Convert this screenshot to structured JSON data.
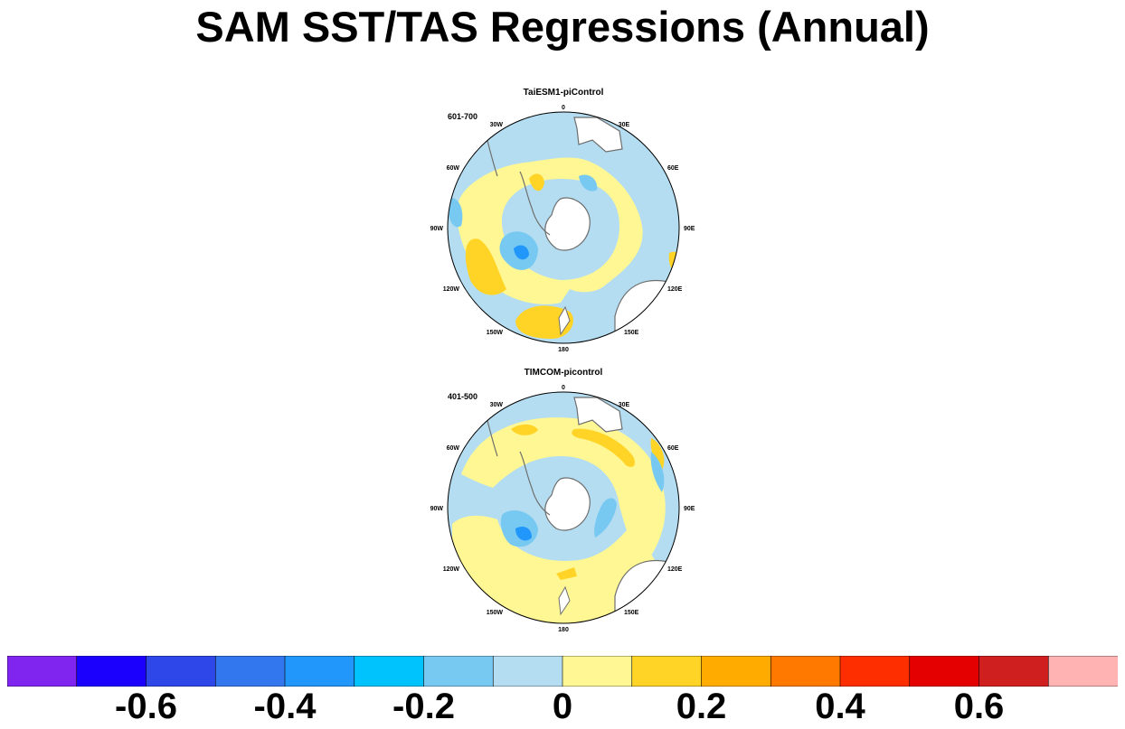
{
  "title": "SAM SST/TAS Regressions (Annual)",
  "panels": [
    {
      "model": "TaiESM1-piControl",
      "years": "601-700",
      "lon_labels": {
        "0": "0",
        "30E": "30E",
        "60E": "60E",
        "90E": "90E",
        "120E": "120E",
        "150E": "150E",
        "180": "180",
        "150W": "150W",
        "120W": "120W",
        "90W": "90W",
        "60W": "60W",
        "30W": "30W"
      }
    },
    {
      "model": "TIMCOM-picontrol",
      "years": "401-500",
      "lon_labels": {
        "0": "0",
        "30E": "30E",
        "60E": "60E",
        "90E": "90E",
        "120E": "120E",
        "150E": "150E",
        "180": "180",
        "150W": "150W",
        "120W": "120W",
        "90W": "90W",
        "60W": "60W",
        "30W": "30W"
      }
    }
  ],
  "colorbar": {
    "colors": [
      "#8025f0",
      "#1b00fe",
      "#2e47e8",
      "#3377ee",
      "#2196fb",
      "#00c2fc",
      "#77c9f2",
      "#b4ddf1",
      "#fff793",
      "#ffd426",
      "#ffab00",
      "#ff7800",
      "#ff2e00",
      "#e40000",
      "#cf1f1f",
      "#ffb3b3"
    ],
    "labels": [
      "-0.6",
      "-0.4",
      "-0.2",
      "0",
      "0.2",
      "0.4",
      "0.6"
    ],
    "label_values": [
      -0.6,
      -0.4,
      -0.2,
      0,
      0.2,
      0.4,
      0.6
    ],
    "min": -0.8,
    "max": 0.8
  },
  "palette": {
    "land": "#ffffff",
    "coast": "#6e6e6e",
    "pale_blue": "#b4ddf1",
    "light_blue": "#77c9f2",
    "blue": "#2196fb",
    "pale_yellow": "#fff793",
    "yellow": "#ffd426"
  }
}
